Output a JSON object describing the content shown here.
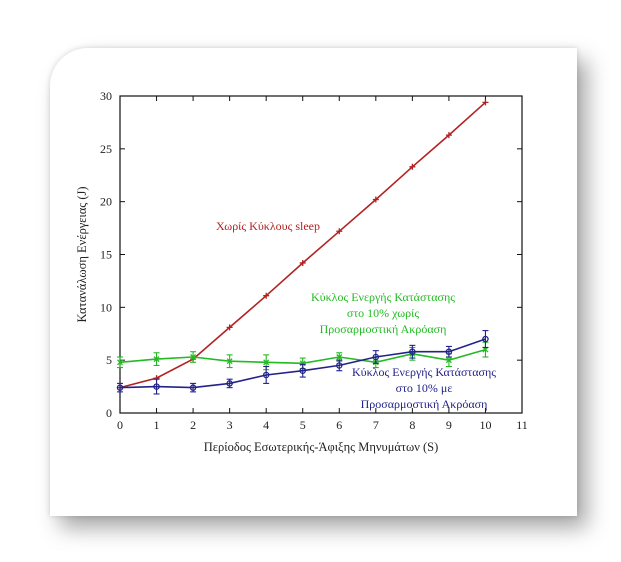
{
  "chart_data": {
    "type": "line",
    "xlabel": "Περίοδος Εσωτερικής-Άφιξης Μηνυμάτων (S)",
    "ylabel": "Κατανάλωση Ενέργειας (J)",
    "xlim": [
      0,
      11
    ],
    "ylim": [
      0,
      30
    ],
    "x_ticks": [
      "0",
      "1",
      "2",
      "3",
      "4",
      "5",
      "6",
      "7",
      "8",
      "9",
      "10",
      "11"
    ],
    "y_ticks": [
      "0",
      "5",
      "10",
      "15",
      "20",
      "25",
      "30"
    ],
    "grid": false,
    "series": [
      {
        "name": "Χωρίς Κύκλους sleep",
        "color": "#b22222",
        "marker": "plus",
        "x": [
          0,
          1,
          2,
          3,
          4,
          5,
          6,
          7,
          8,
          9,
          10
        ],
        "y": [
          2.4,
          3.3,
          5.1,
          8.1,
          11.1,
          14.2,
          17.2,
          20.2,
          23.3,
          26.3,
          29.4
        ],
        "err": [
          0,
          0,
          0,
          0,
          0,
          0,
          0,
          0,
          0,
          0,
          0
        ]
      },
      {
        "name": "Κύκλος Ενεργής Κατάστασης στο 10% χωρίς Προσαρμοστική Ακρόαση",
        "color": "#22bb22",
        "marker": "x",
        "x": [
          0,
          1,
          2,
          3,
          4,
          5,
          6,
          7,
          8,
          9,
          10
        ],
        "y": [
          4.8,
          5.1,
          5.3,
          4.9,
          4.8,
          4.7,
          5.3,
          4.8,
          5.6,
          5.0,
          6.0
        ],
        "err": [
          0.5,
          0.6,
          0.5,
          0.6,
          0.7,
          0.5,
          0.4,
          0.5,
          0.6,
          0.6,
          0.7
        ]
      },
      {
        "name": "Κύκλος Ενεργής Κατάστασης στο 10% με Προσαρμοστική Ακρόαση",
        "color": "#22228b",
        "marker": "circle",
        "x": [
          0,
          1,
          2,
          3,
          4,
          5,
          6,
          7,
          8,
          9,
          10
        ],
        "y": [
          2.4,
          2.5,
          2.4,
          2.8,
          3.6,
          4.0,
          4.5,
          5.3,
          5.8,
          5.8,
          7.0
        ],
        "err": [
          0.4,
          0.7,
          0.4,
          0.4,
          0.8,
          0.6,
          0.5,
          0.6,
          0.6,
          0.5,
          0.8
        ]
      }
    ],
    "annotations": [
      {
        "series": 0,
        "lines": [
          "Χωρίς Κύκλους sleep"
        ]
      },
      {
        "series": 1,
        "lines": [
          "Κύκλος Ενεργής Κατάστασης",
          "στο 10% χωρίς",
          "Προσαρμοστική Ακρόαση"
        ]
      },
      {
        "series": 2,
        "lines": [
          "Κύκλος Ενεργής Κατάστασης",
          "στο 10% με",
          "Προσαρμοστική Ακρόαση"
        ]
      }
    ]
  }
}
